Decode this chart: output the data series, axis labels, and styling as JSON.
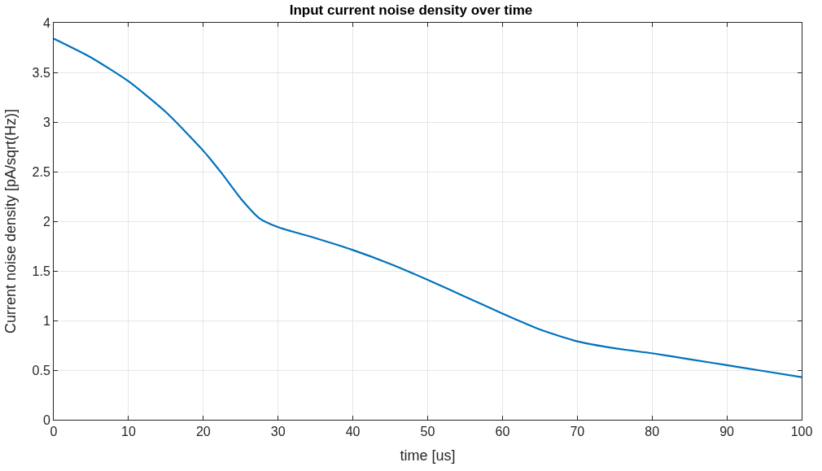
{
  "chart_data": {
    "type": "line",
    "title": "Input current noise density over time",
    "xlabel": "time [us]",
    "ylabel": "Current noise density [pA/sqrt(Hz)]",
    "x": [
      0,
      5,
      10,
      15,
      20,
      22.5,
      25,
      27.5,
      30,
      35,
      40,
      45,
      50,
      55,
      60,
      65,
      70,
      75,
      80,
      85,
      90,
      95,
      100
    ],
    "series": [
      {
        "color": "#0072bd",
        "values": [
          3.84,
          3.65,
          3.41,
          3.1,
          2.71,
          2.48,
          2.23,
          2.03,
          1.94,
          1.83,
          1.71,
          1.57,
          1.41,
          1.24,
          1.07,
          0.91,
          0.79,
          0.72,
          0.67,
          0.61,
          0.55,
          0.49,
          0.43
        ]
      }
    ],
    "xlim": [
      0,
      100
    ],
    "xticks": [
      0,
      10,
      20,
      30,
      40,
      50,
      60,
      70,
      80,
      90,
      100
    ],
    "ylim": [
      0,
      4
    ],
    "yticks": [
      0,
      0.5,
      1,
      1.5,
      2,
      2.5,
      3,
      3.5,
      4
    ],
    "grid": true,
    "legend": false,
    "marker": "none",
    "line_style": "solid"
  }
}
